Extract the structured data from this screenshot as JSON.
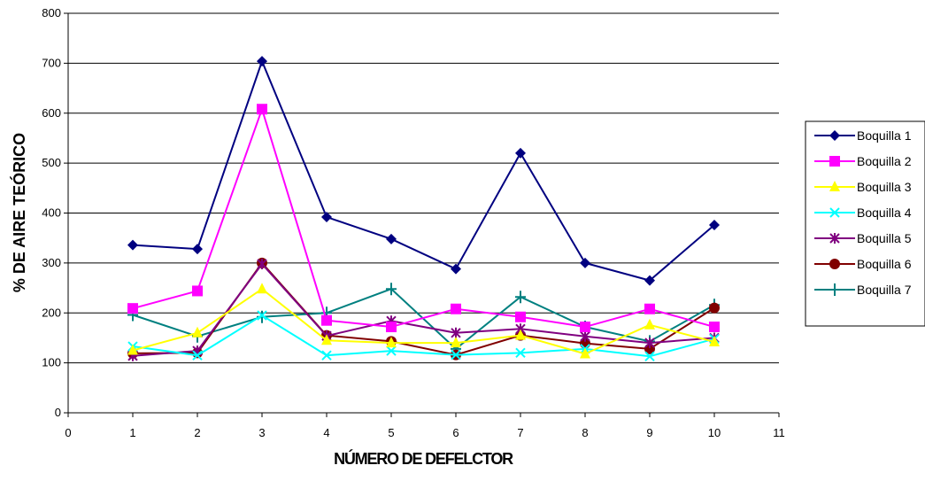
{
  "chart_data": {
    "type": "line",
    "xlabel": "NÚMERO DE DEFELCTOR",
    "ylabel": "% DE AIRE TEÓRICO",
    "xlim": [
      0,
      11
    ],
    "ylim": [
      0,
      800
    ],
    "xticks": [
      "0",
      "1",
      "2",
      "3",
      "4",
      "5",
      "6",
      "7",
      "8",
      "9",
      "10",
      "11"
    ],
    "yticks": [
      "0",
      "100",
      "200",
      "300",
      "400",
      "500",
      "600",
      "700",
      "800"
    ],
    "grid": "horizontal",
    "legend_position": "right",
    "x": [
      1,
      2,
      3,
      4,
      5,
      6,
      7,
      8,
      9,
      10
    ],
    "series": [
      {
        "name": "Boquilla 1",
        "color": "#000080",
        "marker": "diamond",
        "values": [
          336,
          328,
          704,
          392,
          348,
          288,
          520,
          300,
          265,
          376
        ]
      },
      {
        "name": "Boquilla 2",
        "color": "#ff00ff",
        "marker": "square",
        "values": [
          209,
          244,
          608,
          185,
          172,
          208,
          192,
          172,
          208,
          172
        ]
      },
      {
        "name": "Boquilla 3",
        "color": "#ffff00",
        "marker": "triangle",
        "values": [
          125,
          160,
          248,
          145,
          140,
          140,
          155,
          118,
          176,
          142
        ]
      },
      {
        "name": "Boquilla 4",
        "color": "#00ffff",
        "marker": "x",
        "values": [
          133,
          115,
          195,
          115,
          124,
          116,
          120,
          128,
          113,
          148
        ]
      },
      {
        "name": "Boquilla 5",
        "color": "#800080",
        "marker": "star",
        "values": [
          114,
          124,
          298,
          154,
          184,
          160,
          168,
          153,
          140,
          150
        ]
      },
      {
        "name": "Boquilla 6",
        "color": "#800000",
        "marker": "circle",
        "values": [
          119,
          120,
          300,
          155,
          143,
          116,
          155,
          139,
          128,
          210
        ]
      },
      {
        "name": "Boquilla 7",
        "color": "#008080",
        "marker": "plus",
        "values": [
          196,
          153,
          192,
          200,
          248,
          128,
          232,
          172,
          143,
          216
        ]
      }
    ]
  }
}
